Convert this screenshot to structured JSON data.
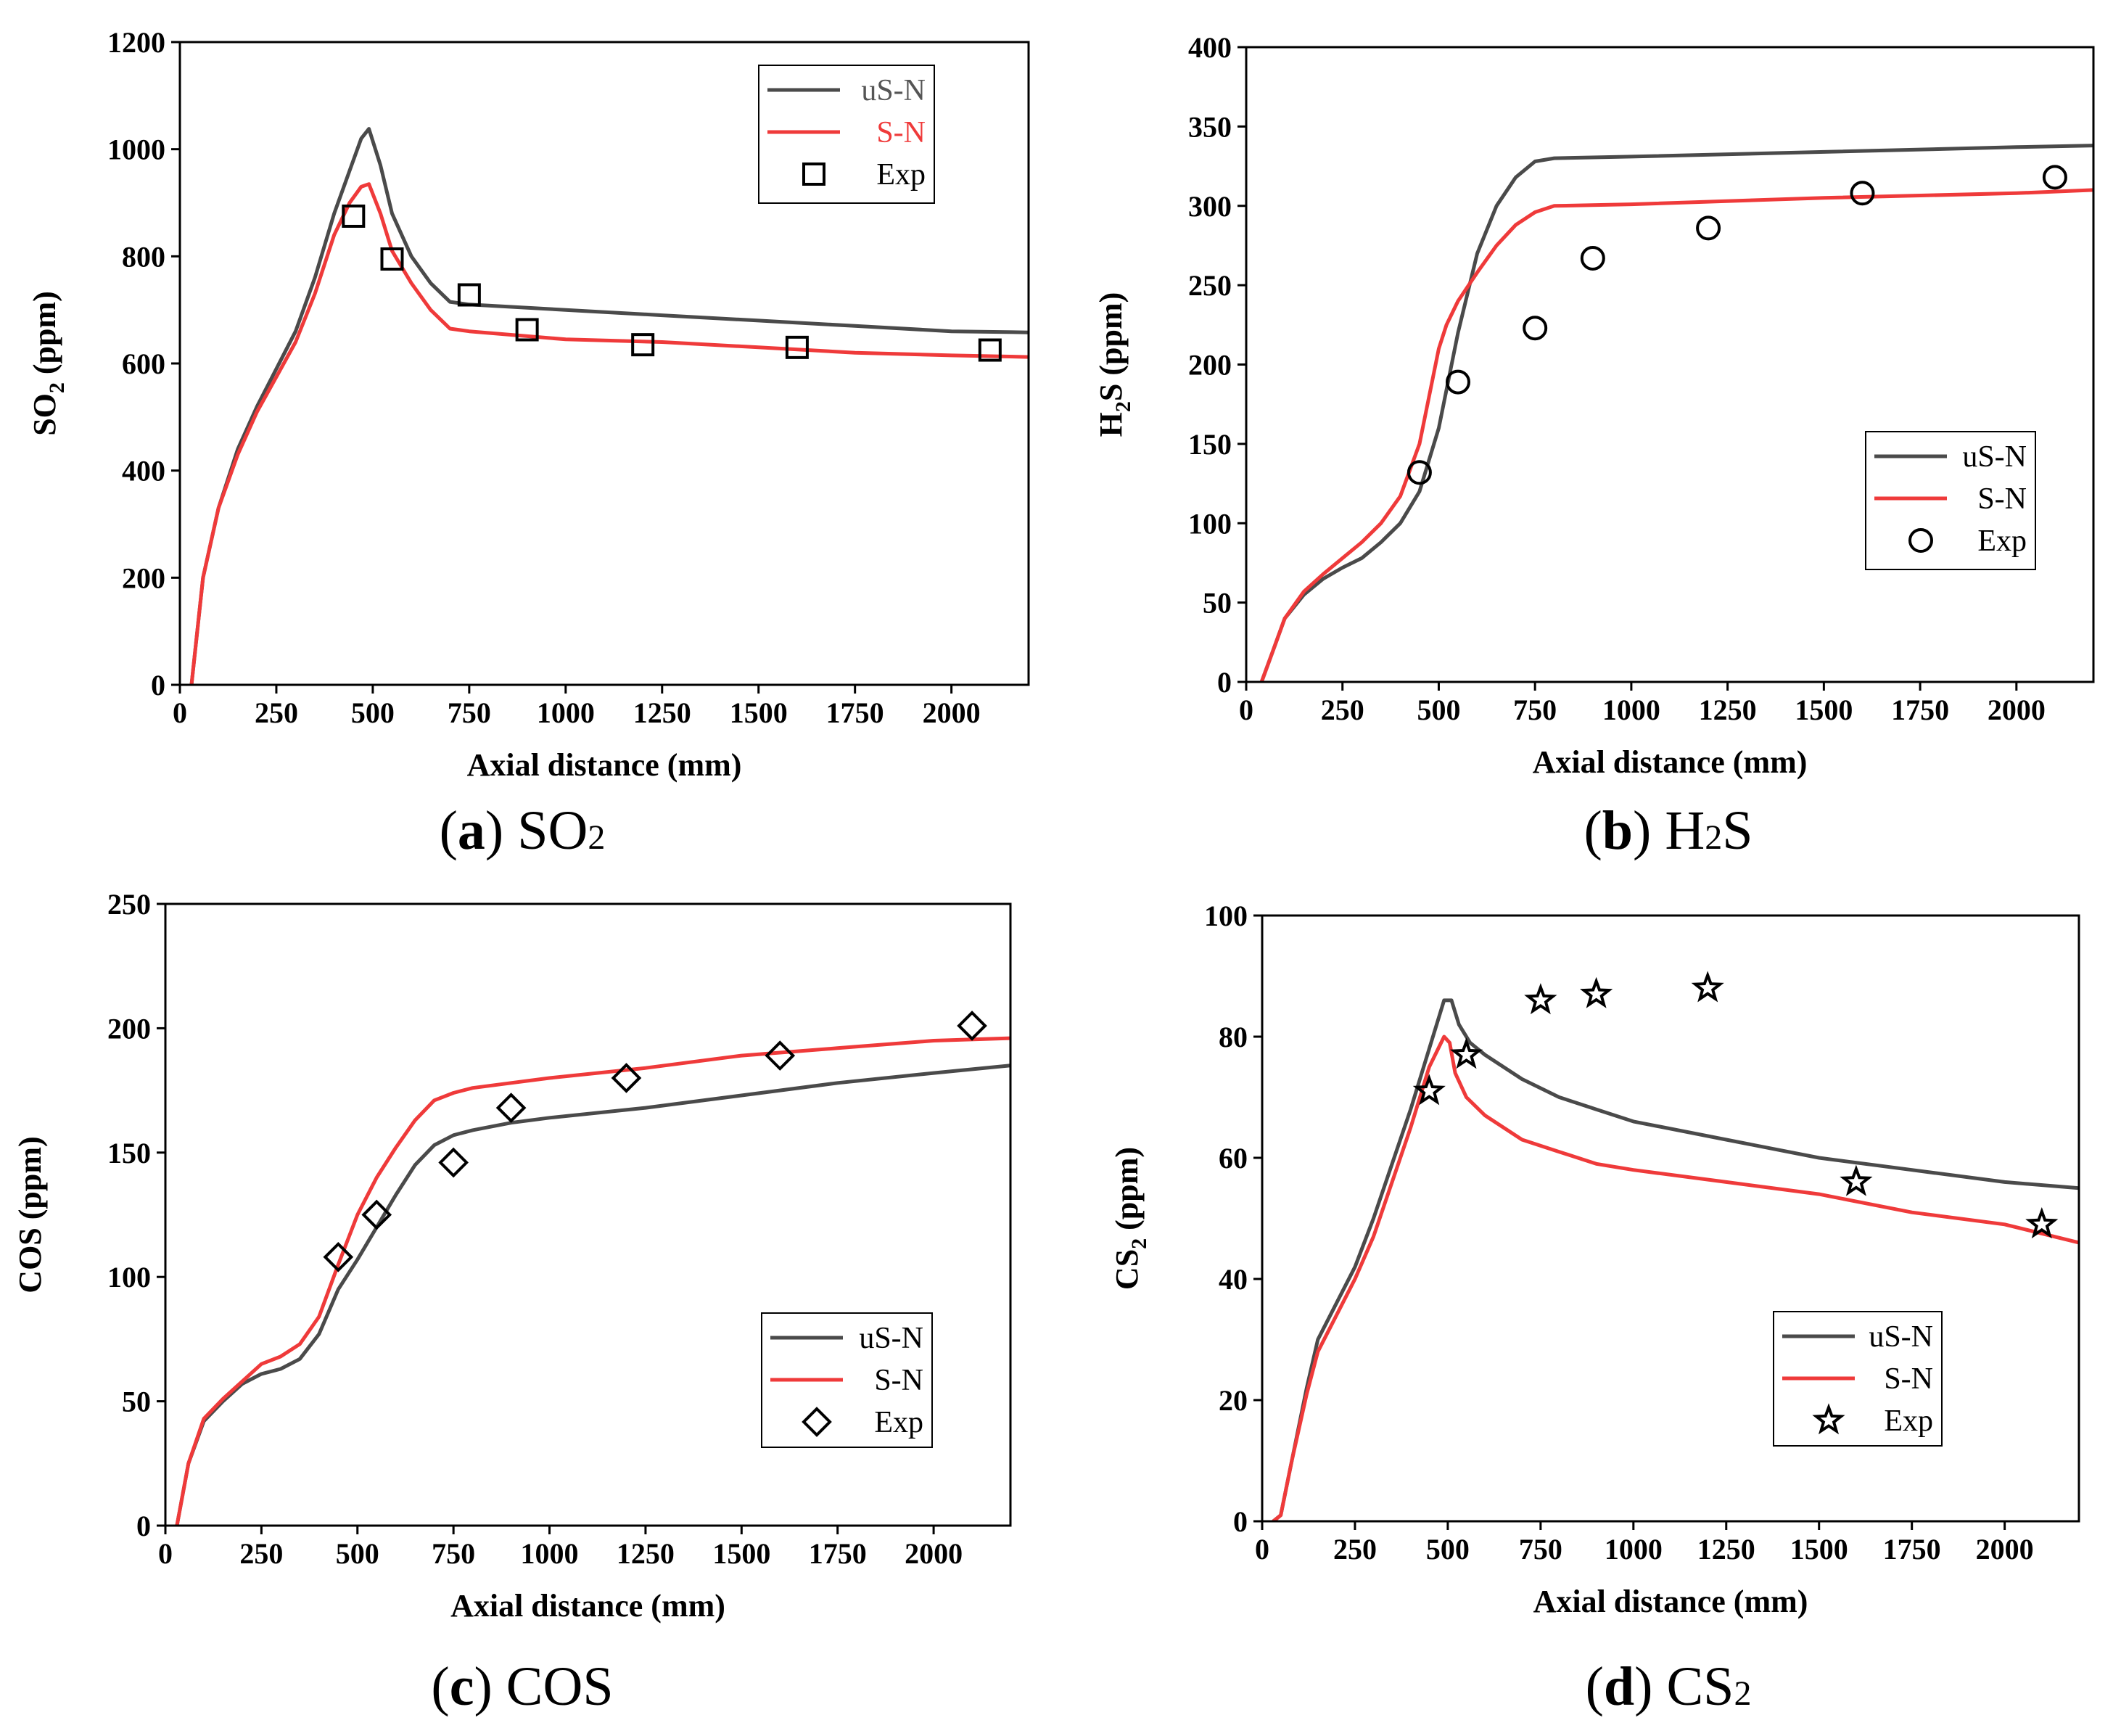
{
  "chart_data": [
    {
      "type": "line",
      "panel": "a",
      "caption": {
        "letter": "a",
        "label": "SO",
        "sub": "2"
      },
      "xlabel": "Axial distance (mm)",
      "ylabel": {
        "main": "SO",
        "sub": "2",
        "rest": " (ppm)"
      },
      "xlim": [
        0,
        2200
      ],
      "ylim": [
        0,
        1200
      ],
      "xticks": [
        0,
        250,
        500,
        750,
        1000,
        1250,
        1500,
        1750,
        2000
      ],
      "yticks": [
        0,
        200,
        400,
        600,
        800,
        1000,
        1200
      ],
      "legend": {
        "position": "top-right"
      },
      "series": [
        {
          "name": "uS-N",
          "color": "#4a4a4a",
          "label_color": "#555555",
          "x": [
            30,
            60,
            100,
            150,
            200,
            250,
            300,
            350,
            400,
            440,
            470,
            490,
            520,
            550,
            600,
            650,
            700,
            750,
            1000,
            1250,
            1500,
            1750,
            2000,
            2200
          ],
          "y": [
            0,
            200,
            330,
            440,
            520,
            590,
            660,
            760,
            880,
            960,
            1020,
            1038,
            970,
            880,
            800,
            750,
            715,
            710,
            700,
            690,
            680,
            670,
            660,
            658
          ]
        },
        {
          "name": "S-N",
          "color": "#ef3a3a",
          "label_color": "#ef3a3a",
          "x": [
            30,
            60,
            100,
            150,
            200,
            250,
            300,
            350,
            400,
            440,
            470,
            490,
            520,
            550,
            600,
            650,
            700,
            750,
            1000,
            1250,
            1500,
            1750,
            2000,
            2200
          ],
          "y": [
            0,
            200,
            330,
            430,
            510,
            575,
            640,
            730,
            840,
            900,
            930,
            935,
            880,
            810,
            750,
            700,
            665,
            660,
            645,
            640,
            630,
            620,
            615,
            612
          ]
        },
        {
          "name": "Exp",
          "marker": "square",
          "label_color": "#000000",
          "x": [
            450,
            550,
            750,
            900,
            1200,
            1600,
            2100
          ],
          "y": [
            875,
            795,
            728,
            663,
            635,
            630,
            625
          ]
        }
      ]
    },
    {
      "type": "line",
      "panel": "b",
      "caption": {
        "letter": "b",
        "label": "H",
        "sub": "2",
        "label_after": "S"
      },
      "xlabel": "Axial distance (mm)",
      "ylabel": {
        "main": "H",
        "sub": "2",
        "rest": "S (ppm)"
      },
      "xlim": [
        0,
        2200
      ],
      "ylim": [
        0,
        400
      ],
      "xticks": [
        0,
        250,
        500,
        750,
        1000,
        1250,
        1500,
        1750,
        2000
      ],
      "yticks": [
        0,
        50,
        100,
        150,
        200,
        250,
        300,
        350,
        400
      ],
      "legend": {
        "position": "center-right"
      },
      "series": [
        {
          "name": "uS-N",
          "color": "#4a4a4a",
          "label_color": "#000000",
          "x": [
            40,
            70,
            100,
            150,
            200,
            250,
            300,
            350,
            400,
            450,
            500,
            550,
            600,
            650,
            700,
            750,
            800,
            1000,
            1500,
            2000,
            2200
          ],
          "y": [
            0,
            20,
            40,
            55,
            65,
            72,
            78,
            88,
            100,
            120,
            160,
            220,
            270,
            300,
            318,
            328,
            330,
            331,
            334,
            337,
            338
          ]
        },
        {
          "name": "S-N",
          "color": "#ef3a3a",
          "label_color": "#000000",
          "x": [
            40,
            70,
            100,
            150,
            200,
            250,
            300,
            350,
            400,
            450,
            500,
            520,
            550,
            600,
            650,
            700,
            750,
            800,
            1000,
            1500,
            2000,
            2200
          ],
          "y": [
            0,
            20,
            40,
            57,
            68,
            78,
            88,
            100,
            117,
            150,
            210,
            225,
            240,
            258,
            275,
            288,
            296,
            300,
            301,
            305,
            308,
            310
          ]
        },
        {
          "name": "Exp",
          "marker": "circle",
          "label_color": "#000000",
          "x": [
            450,
            550,
            750,
            900,
            1200,
            1600,
            2100
          ],
          "y": [
            132,
            189,
            223,
            267,
            286,
            308,
            318
          ]
        }
      ]
    },
    {
      "type": "line",
      "panel": "c",
      "caption": {
        "letter": "c",
        "label": "COS",
        "sub": ""
      },
      "xlabel": "Axial distance (mm)",
      "ylabel": {
        "main": "COS",
        "sub": "",
        "rest": " (ppm)"
      },
      "xlim": [
        0,
        2200
      ],
      "ylim": [
        0,
        250
      ],
      "xticks": [
        0,
        250,
        500,
        750,
        1000,
        1250,
        1500,
        1750,
        2000
      ],
      "yticks": [
        0,
        50,
        100,
        150,
        200,
        250
      ],
      "legend": {
        "position": "bottom-right"
      },
      "series": [
        {
          "name": "uS-N",
          "color": "#4a4a4a",
          "label_color": "#000000",
          "x": [
            30,
            60,
            100,
            150,
            200,
            250,
            300,
            350,
            400,
            450,
            500,
            550,
            600,
            650,
            700,
            750,
            800,
            900,
            1000,
            1250,
            1500,
            1750,
            2000,
            2200
          ],
          "y": [
            0,
            25,
            42,
            50,
            57,
            61,
            63,
            67,
            77,
            95,
            107,
            120,
            133,
            145,
            153,
            157,
            159,
            162,
            164,
            168,
            173,
            178,
            182,
            185
          ]
        },
        {
          "name": "S-N",
          "color": "#ef3a3a",
          "label_color": "#000000",
          "x": [
            30,
            60,
            100,
            150,
            200,
            250,
            300,
            350,
            400,
            450,
            500,
            550,
            600,
            650,
            700,
            750,
            800,
            900,
            1000,
            1250,
            1500,
            1750,
            2000,
            2200
          ],
          "y": [
            0,
            25,
            43,
            51,
            58,
            65,
            68,
            73,
            84,
            105,
            125,
            140,
            152,
            163,
            171,
            174,
            176,
            178,
            180,
            184,
            189,
            192,
            195,
            196
          ]
        },
        {
          "name": "Exp",
          "marker": "diamond",
          "label_color": "#000000",
          "x": [
            450,
            550,
            750,
            900,
            1200,
            1600,
            2100
          ],
          "y": [
            108,
            125,
            146,
            168,
            180,
            189,
            201
          ]
        }
      ]
    },
    {
      "type": "line",
      "panel": "d",
      "caption": {
        "letter": "d",
        "label": "CS",
        "sub": "2"
      },
      "xlabel": "Axial distance (mm)",
      "ylabel": {
        "main": "CS",
        "sub": "2",
        "rest": " (ppm)"
      },
      "xlim": [
        0,
        2200
      ],
      "ylim": [
        0,
        100
      ],
      "xticks": [
        0,
        250,
        500,
        750,
        1000,
        1250,
        1500,
        1750,
        2000
      ],
      "yticks": [
        0,
        20,
        40,
        60,
        80,
        100
      ],
      "legend": {
        "position": "bottom-center"
      },
      "series": [
        {
          "name": "uS-N",
          "color": "#4a4a4a",
          "label_color": "#000000",
          "x": [
            30,
            50,
            80,
            120,
            150,
            200,
            250,
            300,
            350,
            400,
            450,
            490,
            510,
            530,
            560,
            600,
            700,
            800,
            900,
            1000,
            1250,
            1500,
            1750,
            2000,
            2200
          ],
          "y": [
            0,
            1,
            10,
            22,
            30,
            36,
            42,
            50,
            59,
            68,
            78,
            86,
            86,
            82,
            79,
            77,
            73,
            70,
            68,
            66,
            63,
            60,
            58,
            56,
            55
          ]
        },
        {
          "name": "S-N",
          "color": "#ef3a3a",
          "label_color": "#000000",
          "x": [
            30,
            50,
            80,
            120,
            150,
            200,
            250,
            300,
            350,
            400,
            450,
            490,
            505,
            520,
            550,
            600,
            700,
            800,
            900,
            1000,
            1250,
            1500,
            1750,
            2000,
            2200
          ],
          "y": [
            0,
            1,
            10,
            21,
            28,
            34,
            40,
            47,
            56,
            65,
            75,
            80,
            79,
            74,
            70,
            67,
            63,
            61,
            59,
            58,
            56,
            54,
            51,
            49,
            46
          ]
        },
        {
          "name": "Exp",
          "marker": "star",
          "label_color": "#000000",
          "x": [
            450,
            550,
            750,
            900,
            1200,
            1600,
            2100
          ],
          "y": [
            71,
            77,
            86,
            87,
            88,
            56,
            49
          ]
        }
      ]
    }
  ]
}
